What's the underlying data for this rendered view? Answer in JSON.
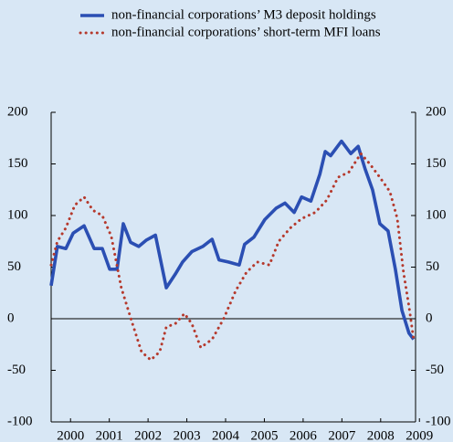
{
  "chart_data": {
    "type": "line",
    "legend": "top",
    "xlim": [
      2000,
      2009.4
    ],
    "xticks": [
      {
        "value": 2000.5,
        "label": "2000"
      },
      {
        "value": 2001.5,
        "label": "2001"
      },
      {
        "value": 2002.5,
        "label": "2002"
      },
      {
        "value": 2003.5,
        "label": "2003"
      },
      {
        "value": 2004.5,
        "label": "2004"
      },
      {
        "value": 2005.5,
        "label": "2005"
      },
      {
        "value": 2006.5,
        "label": "2006"
      },
      {
        "value": 2007.5,
        "label": "2007"
      },
      {
        "value": 2008.5,
        "label": "2008"
      },
      {
        "value": 2009.5,
        "label": "2009"
      }
    ],
    "ylim": [
      -100,
      200
    ],
    "yticks": [
      -100,
      -50,
      0,
      50,
      100,
      150,
      200
    ],
    "y2lim": [
      -100,
      200
    ],
    "y2ticks": [
      -100,
      -50,
      0,
      50,
      100,
      150,
      200
    ],
    "series": [
      {
        "name": "non-financial corporations’ M3 deposit holdings",
        "color": "#2b4fb3",
        "style": "solid",
        "x": [
          2000.0,
          2000.16,
          2000.38,
          2000.57,
          2000.85,
          2001.11,
          2001.32,
          2001.51,
          2001.7,
          2001.86,
          2002.05,
          2002.26,
          2002.45,
          2002.69,
          2002.97,
          2003.2,
          2003.39,
          2003.63,
          2003.91,
          2004.15,
          2004.33,
          2004.57,
          2004.85,
          2004.99,
          2005.23,
          2005.51,
          2005.8,
          2006.03,
          2006.27,
          2006.46,
          2006.7,
          2006.93,
          2007.07,
          2007.21,
          2007.49,
          2007.73,
          2007.92,
          2008.1,
          2008.29,
          2008.48,
          2008.69,
          2008.88,
          2009.05,
          2009.23,
          2009.35
        ],
        "values": [
          32,
          70,
          68,
          83,
          90,
          68,
          68,
          48,
          48,
          92,
          74,
          70,
          76,
          81,
          30,
          43,
          55,
          65,
          70,
          77,
          57,
          55,
          52,
          72,
          79,
          96,
          107,
          112,
          103,
          118,
          114,
          140,
          162,
          158,
          172,
          160,
          167,
          145,
          125,
          92,
          85,
          48,
          8,
          -14,
          -20
        ]
      },
      {
        "name": "non-financial corporations’ short-term MFI loans",
        "color": "#b5392c",
        "style": "dotted",
        "x": [
          2000.0,
          2000.16,
          2000.38,
          2000.61,
          2000.85,
          2001.08,
          2001.32,
          2001.55,
          2001.81,
          2002.1,
          2002.33,
          2002.57,
          2002.8,
          2002.97,
          2003.2,
          2003.44,
          2003.63,
          2003.86,
          2004.15,
          2004.45,
          2004.76,
          2005.04,
          2005.32,
          2005.63,
          2005.87,
          2006.17,
          2006.46,
          2006.81,
          2007.11,
          2007.4,
          2007.68,
          2007.99,
          2008.22,
          2008.48,
          2008.74,
          2008.93,
          2009.09,
          2009.23,
          2009.35
        ],
        "values": [
          52,
          75,
          88,
          110,
          118,
          105,
          100,
          80,
          30,
          -5,
          -32,
          -40,
          -32,
          -8,
          -5,
          5,
          -5,
          -28,
          -20,
          0,
          27,
          45,
          55,
          52,
          75,
          88,
          97,
          103,
          115,
          137,
          142,
          160,
          150,
          137,
          123,
          97,
          45,
          12,
          -20
        ]
      }
    ]
  }
}
